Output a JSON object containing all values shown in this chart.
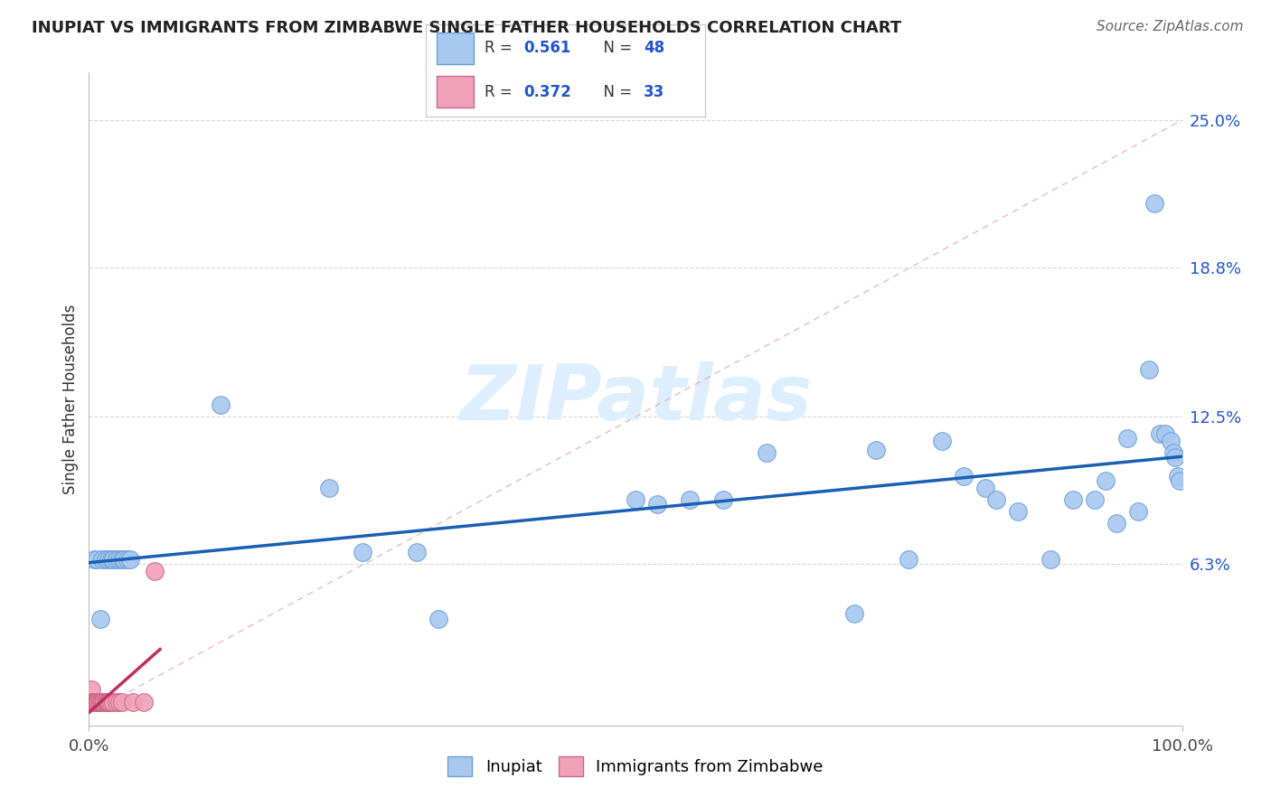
{
  "title": "INUPIAT VS IMMIGRANTS FROM ZIMBABWE SINGLE FATHER HOUSEHOLDS CORRELATION CHART",
  "source": "Source: ZipAtlas.com",
  "ylabel": "Single Father Households",
  "legend_r1": "0.561",
  "legend_n1": "48",
  "legend_r2": "0.372",
  "legend_n2": "33",
  "legend_label1": "Inupiat",
  "legend_label2": "Immigrants from Zimbabwe",
  "ytick_values": [
    0.0,
    0.063,
    0.125,
    0.188,
    0.25
  ],
  "ytick_labels": [
    "",
    "6.3%",
    "12.5%",
    "18.8%",
    "25.0%"
  ],
  "xlim": [
    0.0,
    1.0
  ],
  "ylim": [
    -0.005,
    0.27
  ],
  "color_inupiat": "#a8c8f0",
  "color_inupiat_edge": "#6aa0d8",
  "color_zimbabwe": "#f0a0b8",
  "color_zimbabwe_edge": "#d06888",
  "color_line_inupiat": "#1a5fb4",
  "color_line_zimbabwe": "#c03060",
  "color_diagonal": "#e8b0b8",
  "background_color": "#ffffff",
  "grid_color": "#cccccc",
  "inupiat_x": [
    0.005,
    0.007,
    0.01,
    0.012,
    0.015,
    0.018,
    0.02,
    0.022,
    0.025,
    0.028,
    0.03,
    0.032,
    0.035,
    0.038,
    0.12,
    0.22,
    0.25,
    0.3,
    0.32,
    0.5,
    0.52,
    0.55,
    0.58,
    0.62,
    0.7,
    0.72,
    0.75,
    0.78,
    0.8,
    0.82,
    0.83,
    0.85,
    0.88,
    0.9,
    0.92,
    0.93,
    0.94,
    0.95,
    0.96,
    0.97,
    0.975,
    0.98,
    0.985,
    0.99,
    0.992,
    0.994,
    0.996,
    0.998
  ],
  "inupiat_y": [
    0.065,
    0.065,
    0.04,
    0.065,
    0.065,
    0.065,
    0.065,
    0.065,
    0.065,
    0.065,
    0.065,
    0.065,
    0.065,
    0.065,
    0.13,
    0.095,
    0.068,
    0.068,
    0.04,
    0.09,
    0.088,
    0.09,
    0.09,
    0.11,
    0.042,
    0.111,
    0.065,
    0.115,
    0.1,
    0.095,
    0.09,
    0.085,
    0.065,
    0.09,
    0.09,
    0.098,
    0.08,
    0.116,
    0.085,
    0.145,
    0.215,
    0.118,
    0.118,
    0.115,
    0.11,
    0.108,
    0.1,
    0.098
  ],
  "zimbabwe_x": [
    0.001,
    0.002,
    0.003,
    0.004,
    0.005,
    0.005,
    0.006,
    0.006,
    0.007,
    0.007,
    0.008,
    0.008,
    0.009,
    0.009,
    0.01,
    0.01,
    0.011,
    0.012,
    0.013,
    0.014,
    0.015,
    0.016,
    0.017,
    0.018,
    0.019,
    0.02,
    0.022,
    0.025,
    0.028,
    0.03,
    0.04,
    0.05,
    0.06
  ],
  "zimbabwe_y": [
    0.005,
    0.01,
    0.005,
    0.005,
    0.005,
    0.005,
    0.005,
    0.005,
    0.005,
    0.005,
    0.005,
    0.005,
    0.005,
    0.005,
    0.005,
    0.005,
    0.005,
    0.005,
    0.005,
    0.005,
    0.005,
    0.005,
    0.005,
    0.005,
    0.005,
    0.005,
    0.005,
    0.005,
    0.005,
    0.005,
    0.005,
    0.005,
    0.06
  ],
  "watermark": "ZIPatlas",
  "watermark_color": "#ddeeff"
}
